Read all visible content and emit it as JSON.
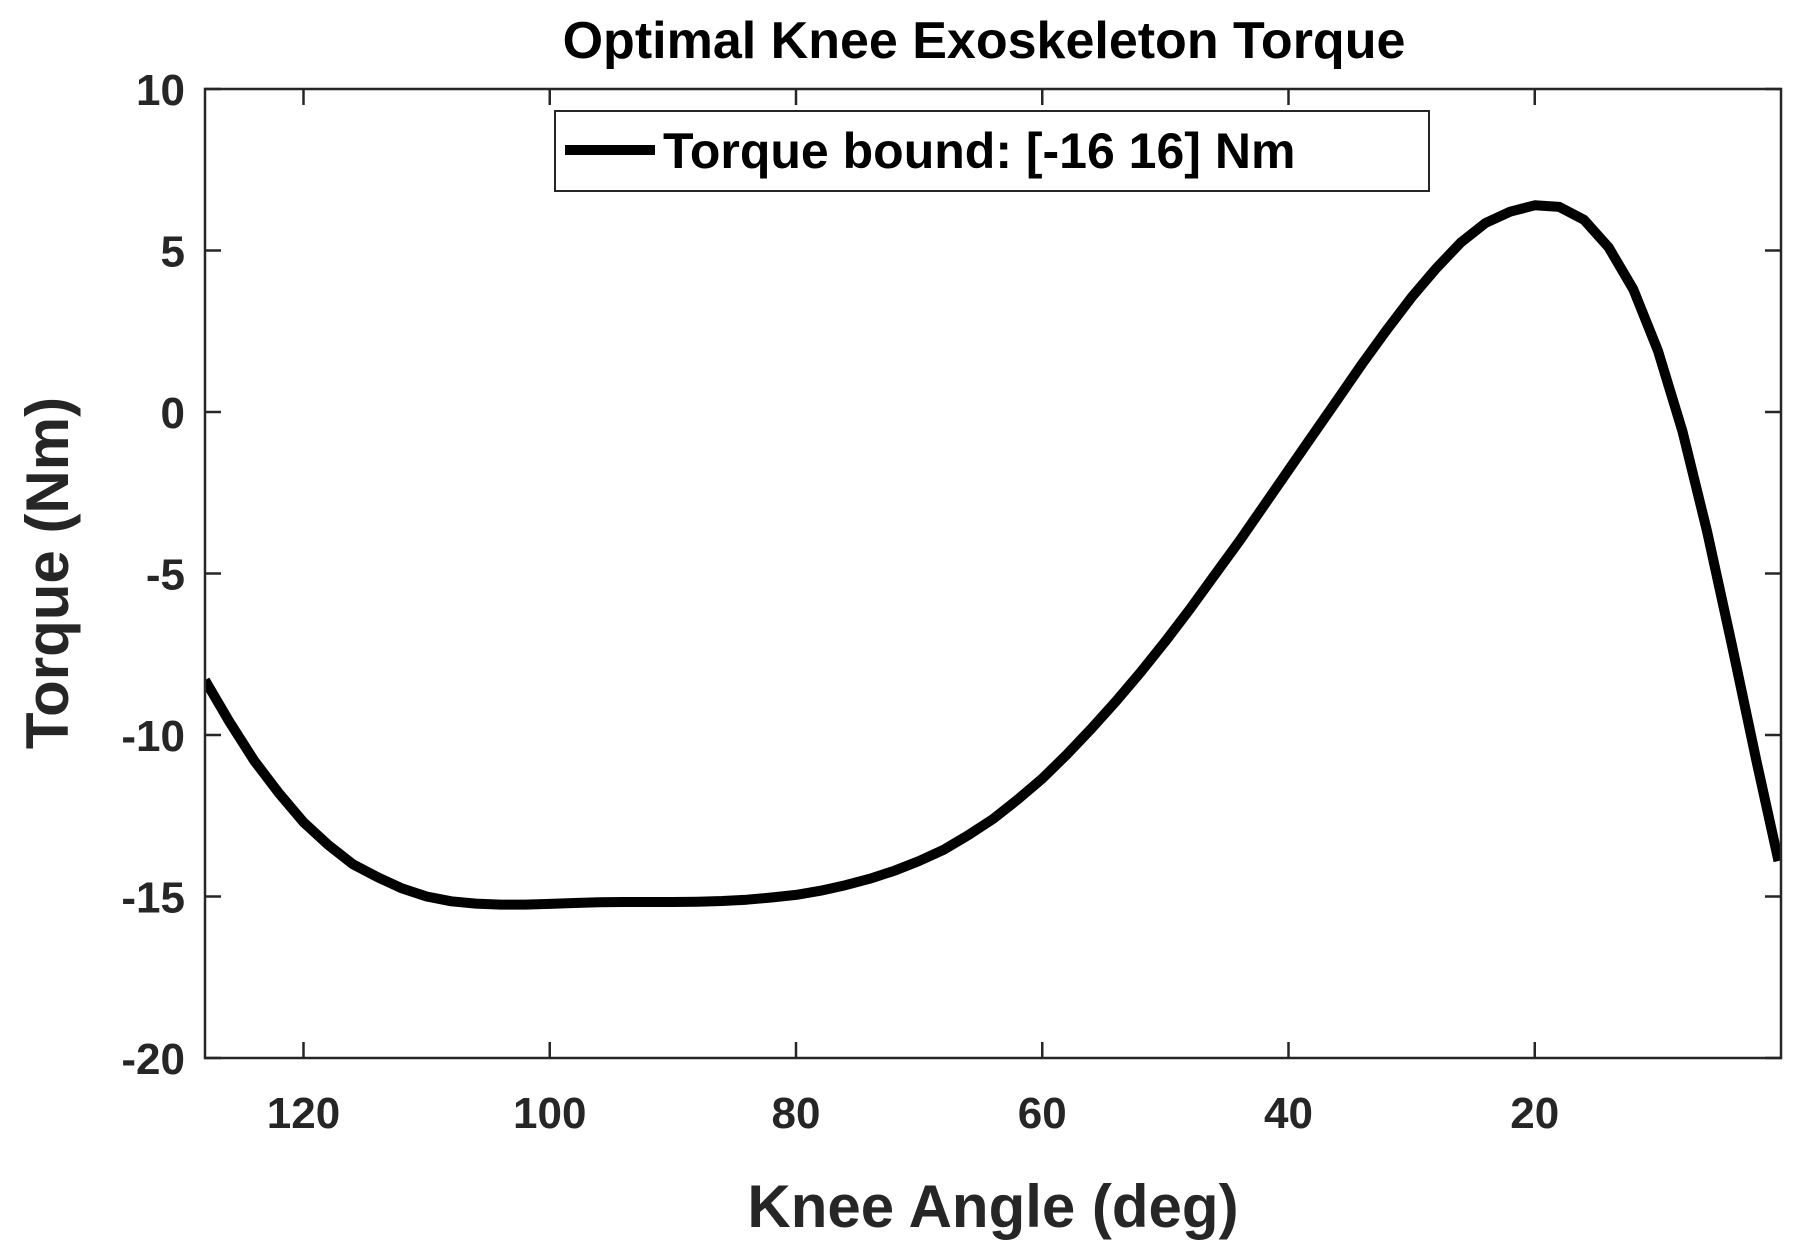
{
  "chart_data": {
    "type": "line",
    "title": "Optimal Knee Exoskeleton Torque",
    "xlabel": "Knee Angle (deg)",
    "ylabel": "Torque (Nm)",
    "xlim": [
      128,
      0
    ],
    "ylim": [
      -20,
      10
    ],
    "x_reversed": true,
    "xticks": [
      120,
      100,
      80,
      60,
      40,
      20
    ],
    "xtick_labels": [
      "120",
      "100",
      "80",
      "60",
      "40",
      "20"
    ],
    "yticks": [
      10,
      5,
      0,
      -5,
      -10,
      -15,
      -20
    ],
    "ytick_labels": [
      "10",
      "5",
      "0",
      "-5",
      "-10",
      "-15",
      "-20"
    ],
    "grid": false,
    "legend_position": "top-center",
    "series": [
      {
        "name": "Torque bound: [-16 16] Nm",
        "color": "#000000",
        "x": [
          128,
          126,
          124,
          122,
          120,
          118,
          116,
          114,
          112,
          110,
          108,
          106,
          104,
          102,
          100,
          98,
          96,
          94,
          92,
          90,
          88,
          86,
          84,
          82,
          80,
          78,
          76,
          74,
          72,
          70,
          68,
          66,
          64,
          62,
          60,
          58,
          56,
          54,
          52,
          50,
          48,
          46,
          44,
          42,
          40,
          38,
          36,
          34,
          32,
          30,
          28,
          26,
          24,
          22,
          20,
          18,
          16,
          14,
          12,
          10,
          8,
          6,
          4,
          2,
          0.2
        ],
        "y": [
          -8.3,
          -9.6,
          -10.8,
          -11.8,
          -12.7,
          -13.4,
          -14.0,
          -14.4,
          -14.75,
          -15.0,
          -15.15,
          -15.22,
          -15.25,
          -15.25,
          -15.23,
          -15.2,
          -15.18,
          -15.17,
          -15.17,
          -15.17,
          -15.16,
          -15.14,
          -15.1,
          -15.03,
          -14.95,
          -14.82,
          -14.65,
          -14.45,
          -14.2,
          -13.9,
          -13.55,
          -13.1,
          -12.6,
          -12.0,
          -11.35,
          -10.6,
          -9.8,
          -8.95,
          -8.05,
          -7.1,
          -6.1,
          -5.05,
          -4.0,
          -2.9,
          -1.8,
          -0.7,
          0.4,
          1.5,
          2.55,
          3.55,
          4.45,
          5.25,
          5.85,
          6.2,
          6.4,
          6.35,
          5.95,
          5.1,
          3.8,
          1.9,
          -0.6,
          -3.7,
          -7.2,
          -10.8,
          -13.9
        ]
      }
    ]
  }
}
